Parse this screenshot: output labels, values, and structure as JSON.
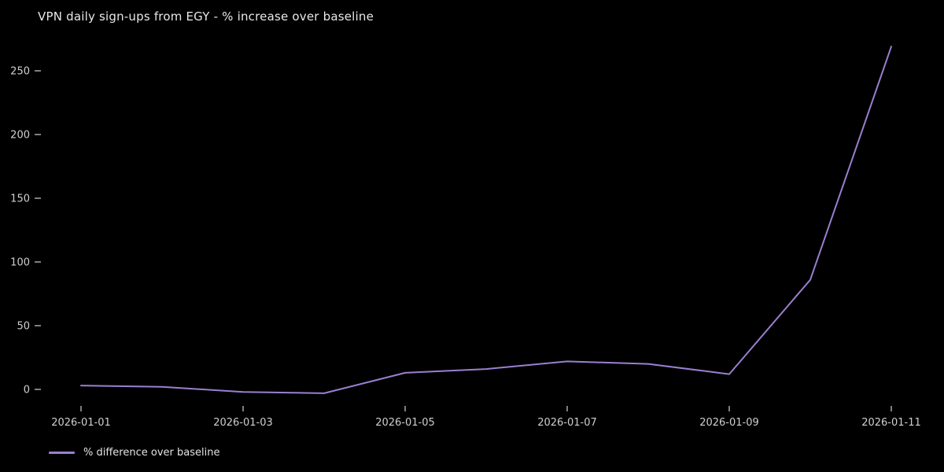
{
  "chart_data": {
    "type": "line",
    "title": "VPN daily sign-ups from EGY - % increase over baseline",
    "x": [
      "2026-01-01",
      "2026-01-02",
      "2026-01-03",
      "2026-01-04",
      "2026-01-05",
      "2026-01-06",
      "2026-01-07",
      "2026-01-08",
      "2026-01-09",
      "2026-01-10",
      "2026-01-11"
    ],
    "series": [
      {
        "name": "% difference over baseline",
        "values": [
          3,
          2,
          -2,
          -3,
          13,
          16,
          22,
          20,
          12,
          86,
          269
        ]
      }
    ],
    "xlabel": "",
    "ylabel": "",
    "x_tick_labels": [
      "2026-01-01",
      "2026-01-03",
      "2026-01-05",
      "2026-01-07",
      "2026-01-09",
      "2026-01-11"
    ],
    "y_ticks": [
      0,
      50,
      100,
      150,
      200,
      250
    ],
    "ylim": [
      -25,
      285
    ],
    "grid": false,
    "legend_position": "lower-left",
    "colors": {
      "background": "#000000",
      "line": "#9b7fd0",
      "title_text": "#e8e8e8",
      "tick_text": "#cfcfcf",
      "tick_mark": "#b5b5b5"
    }
  }
}
